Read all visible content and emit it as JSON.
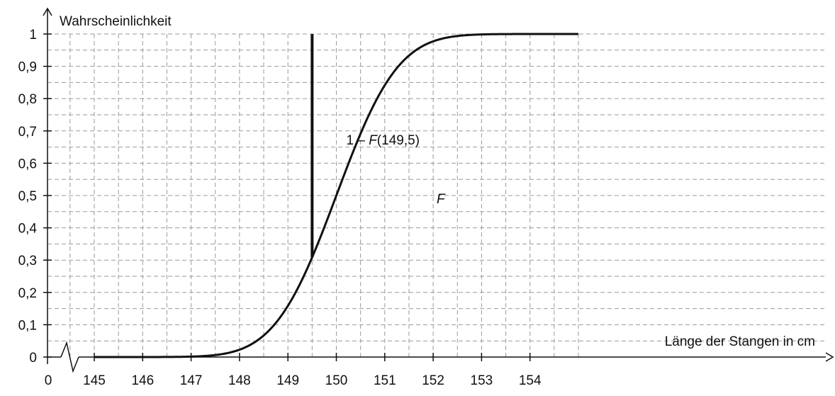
{
  "chart_data": {
    "type": "line",
    "title": "",
    "ylabel": "Wahrscheinlichkeit",
    "xlabel": "Länge der Stangen in cm",
    "x_axis_origin_label": "0",
    "axis_break": true,
    "xlim": [
      144.5,
      155
    ],
    "ylim": [
      0,
      1
    ],
    "x_ticks": [
      145,
      146,
      147,
      148,
      149,
      150,
      151,
      152,
      153,
      154
    ],
    "x_tick_labels": [
      "145",
      "146",
      "147",
      "148",
      "149",
      "150",
      "151",
      "152",
      "153",
      "154"
    ],
    "y_ticks": [
      0,
      0.1,
      0.2,
      0.3,
      0.4,
      0.5,
      0.6,
      0.7,
      0.8,
      0.9,
      1
    ],
    "y_tick_labels": [
      "0",
      "0,1",
      "0,2",
      "0,3",
      "0,4",
      "0,5",
      "0,6",
      "0,7",
      "0,8",
      "0,9",
      "1"
    ],
    "grid": true,
    "grid_minor": true,
    "curve": {
      "label": "F",
      "kind": "normal_cdf",
      "mean": 150,
      "sd": 1,
      "points": [
        {
          "x": 145,
          "y": 0.0
        },
        {
          "x": 147,
          "y": 0.001
        },
        {
          "x": 148,
          "y": 0.023
        },
        {
          "x": 148.5,
          "y": 0.067
        },
        {
          "x": 149,
          "y": 0.159
        },
        {
          "x": 149.5,
          "y": 0.309
        },
        {
          "x": 150,
          "y": 0.5
        },
        {
          "x": 150.5,
          "y": 0.691
        },
        {
          "x": 151,
          "y": 0.841
        },
        {
          "x": 151.5,
          "y": 0.933
        },
        {
          "x": 152,
          "y": 0.977
        },
        {
          "x": 153,
          "y": 0.999
        },
        {
          "x": 155,
          "y": 1.0
        }
      ]
    },
    "annotation": {
      "label_prefix": "1 – ",
      "label_italic": "F",
      "label_suffix": "(149,5)",
      "x": 149.5,
      "y_from": 0.309,
      "y_to": 1
    }
  }
}
